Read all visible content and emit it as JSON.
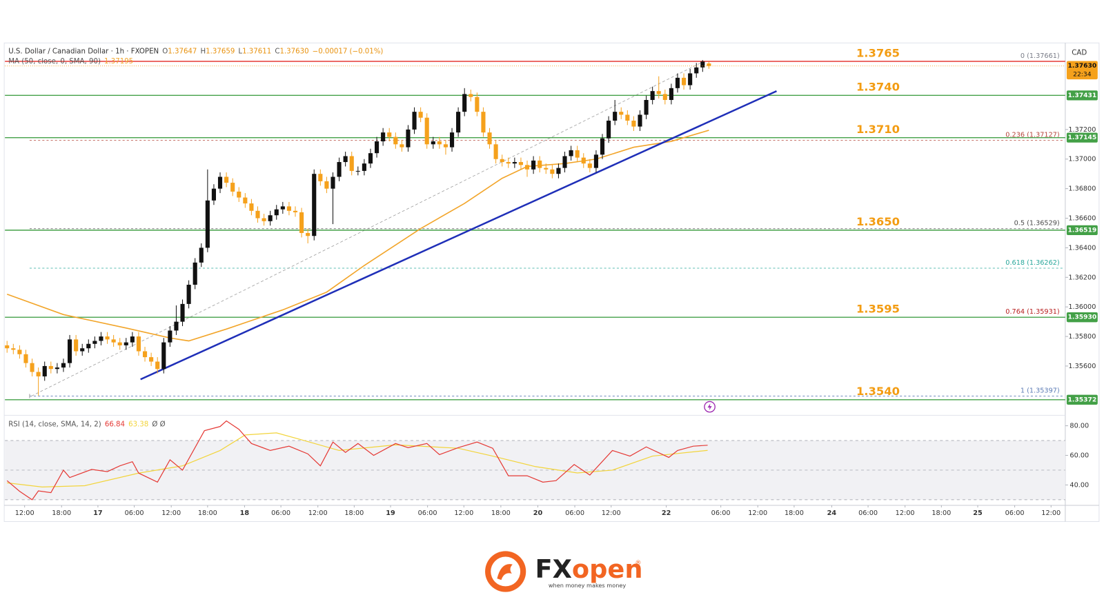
{
  "chart_data": {
    "type": "candlestick",
    "title": "U.S. Dollar / Canadian Dollar · 1h · FXOPEN",
    "ohlc_legend": [
      {
        "key": "O",
        "text": "1.37647"
      },
      {
        "key": "H",
        "text": "1.37659"
      },
      {
        "key": "L",
        "text": "1.37611"
      },
      {
        "key": "C",
        "text": "1.37630"
      }
    ],
    "change": "−0.00017 (−0.01%)",
    "currency": "CAD",
    "up_color": "#111111",
    "down_color": "#f5a11c",
    "xlim": [
      -0.34,
      168.87
    ],
    "xticks": [
      {
        "value": 2.8,
        "label": "12:00"
      },
      {
        "value": 8.7,
        "label": "18:00"
      },
      {
        "value": 14.5,
        "label": "17"
      },
      {
        "value": 20.3,
        "label": "06:00"
      },
      {
        "value": 26.2,
        "label": "12:00"
      },
      {
        "value": 32.0,
        "label": "18:00"
      },
      {
        "value": 37.9,
        "label": "18"
      },
      {
        "value": 43.7,
        "label": "06:00"
      },
      {
        "value": 49.6,
        "label": "12:00"
      },
      {
        "value": 55.4,
        "label": "18:00"
      },
      {
        "value": 61.2,
        "label": "19"
      },
      {
        "value": 67.1,
        "label": "06:00"
      },
      {
        "value": 72.9,
        "label": "12:00"
      },
      {
        "value": 78.8,
        "label": "18:00"
      },
      {
        "value": 84.7,
        "label": "20"
      },
      {
        "value": 90.6,
        "label": "06:00"
      },
      {
        "value": 96.4,
        "label": "12:00"
      },
      {
        "value": 105.2,
        "label": "22"
      },
      {
        "value": 113.9,
        "label": "06:00"
      },
      {
        "value": 119.8,
        "label": "12:00"
      },
      {
        "value": 125.6,
        "label": "18:00"
      },
      {
        "value": 131.6,
        "label": "24"
      },
      {
        "value": 137.4,
        "label": "06:00"
      },
      {
        "value": 143.3,
        "label": "12:00"
      },
      {
        "value": 149.1,
        "label": "18:00"
      },
      {
        "value": 154.9,
        "label": "25"
      },
      {
        "value": 160.8,
        "label": "06:00"
      },
      {
        "value": 166.6,
        "label": "12:00"
      }
    ],
    "ylim": [
      1.35267,
      1.37781
    ],
    "yticks": [
      {
        "value": 1.372,
        "label": "1.37200"
      },
      {
        "value": 1.37,
        "label": "1.37000"
      },
      {
        "value": 1.368,
        "label": "1.36800"
      },
      {
        "value": 1.366,
        "label": "1.36600"
      },
      {
        "value": 1.364,
        "label": "1.36400"
      },
      {
        "value": 1.362,
        "label": "1.36200"
      },
      {
        "value": 1.36,
        "label": "1.36000"
      },
      {
        "value": 1.358,
        "label": "1.35800"
      },
      {
        "value": 1.356,
        "label": "1.35600"
      }
    ],
    "open": [
      1.3574,
      1.3572,
      1.3571,
      1.3568,
      1.3562,
      1.3556,
      1.3553,
      1.356,
      1.3558,
      1.3559,
      1.3562,
      1.3578,
      1.357,
      1.3572,
      1.3575,
      1.3577,
      1.358,
      1.3578,
      1.3576,
      1.3574,
      1.3576,
      1.358,
      1.357,
      1.3566,
      1.3563,
      1.3558,
      1.3576,
      1.3584,
      1.359,
      1.3602,
      1.3615,
      1.363,
      1.364,
      1.3672,
      1.368,
      1.3688,
      1.3684,
      1.3678,
      1.3674,
      1.367,
      1.3665,
      1.366,
      1.3658,
      1.3662,
      1.3666,
      1.3668,
      1.3665,
      1.3664,
      1.365,
      1.3648,
      1.369,
      1.3685,
      1.368,
      1.3688,
      1.3698,
      1.3702,
      1.3692,
      1.3692,
      1.3697,
      1.3704,
      1.3712,
      1.3718,
      1.3715,
      1.371,
      1.3708,
      1.372,
      1.3732,
      1.3728,
      1.371,
      1.3712,
      1.371,
      1.3708,
      1.3718,
      1.3732,
      1.3744,
      1.3742,
      1.3732,
      1.3718,
      1.371,
      1.37,
      1.3698,
      1.3697,
      1.3698,
      1.3696,
      1.3693,
      1.3699,
      1.3694,
      1.3693,
      1.369,
      1.3694,
      1.3702,
      1.3706,
      1.3701,
      1.3697,
      1.3694,
      1.3703,
      1.3714,
      1.3726,
      1.3732,
      1.373,
      1.3726,
      1.3722,
      1.373,
      1.374,
      1.3746,
      1.3744,
      1.374,
      1.3748,
      1.3755,
      1.375,
      1.3758,
      1.3762,
      1.37647
    ],
    "high": [
      1.3577,
      1.3575,
      1.3574,
      1.3571,
      1.3565,
      1.3559,
      1.3563,
      1.3563,
      1.3562,
      1.3565,
      1.3581,
      1.3581,
      1.3575,
      1.3578,
      1.358,
      1.3583,
      1.3583,
      1.3581,
      1.3579,
      1.3579,
      1.3583,
      1.3583,
      1.3573,
      1.3569,
      1.3566,
      1.3579,
      1.3587,
      1.3601,
      1.3605,
      1.3618,
      1.3633,
      1.3643,
      1.3693,
      1.3683,
      1.3691,
      1.3691,
      1.3687,
      1.3681,
      1.3677,
      1.3673,
      1.3668,
      1.3663,
      1.3665,
      1.3669,
      1.3671,
      1.3671,
      1.3668,
      1.3667,
      1.3653,
      1.3693,
      1.3693,
      1.3688,
      1.3691,
      1.3701,
      1.3705,
      1.3705,
      1.3695,
      1.37,
      1.3707,
      1.3715,
      1.3721,
      1.3721,
      1.3718,
      1.3713,
      1.3723,
      1.3735,
      1.3735,
      1.3731,
      1.3715,
      1.3715,
      1.3713,
      1.3721,
      1.3735,
      1.3748,
      1.3747,
      1.3745,
      1.3735,
      1.3721,
      1.3713,
      1.3703,
      1.3701,
      1.3701,
      1.3701,
      1.3699,
      1.3702,
      1.3702,
      1.3697,
      1.3696,
      1.3697,
      1.3705,
      1.3709,
      1.3709,
      1.3704,
      1.37,
      1.3706,
      1.3717,
      1.3729,
      1.374,
      1.3735,
      1.3733,
      1.3729,
      1.3733,
      1.3743,
      1.3749,
      1.3756,
      1.3747,
      1.3751,
      1.3758,
      1.3758,
      1.3761,
      1.3765,
      1.3767,
      1.37659
    ],
    "low": [
      1.3569,
      1.3568,
      1.3565,
      1.3559,
      1.3553,
      1.354,
      1.355,
      1.3555,
      1.3555,
      1.3556,
      1.3559,
      1.3567,
      1.3567,
      1.3569,
      1.3572,
      1.3574,
      1.3575,
      1.3573,
      1.3571,
      1.3571,
      1.3573,
      1.3567,
      1.3563,
      1.356,
      1.3555,
      1.3555,
      1.3573,
      1.3581,
      1.3587,
      1.3599,
      1.3612,
      1.3627,
      1.3637,
      1.3669,
      1.3677,
      1.3681,
      1.3675,
      1.3671,
      1.3667,
      1.3662,
      1.3657,
      1.3655,
      1.3655,
      1.3659,
      1.3663,
      1.3662,
      1.3661,
      1.3647,
      1.3643,
      1.3645,
      1.3682,
      1.3677,
      1.3656,
      1.3685,
      1.3695,
      1.3689,
      1.3689,
      1.3689,
      1.3694,
      1.3701,
      1.3709,
      1.3712,
      1.3707,
      1.3705,
      1.3705,
      1.3717,
      1.3725,
      1.3707,
      1.3707,
      1.3707,
      1.3703,
      1.3705,
      1.3715,
      1.3729,
      1.3739,
      1.3729,
      1.3715,
      1.3707,
      1.3697,
      1.3695,
      1.3694,
      1.3694,
      1.3693,
      1.3688,
      1.369,
      1.3691,
      1.369,
      1.3687,
      1.3687,
      1.3691,
      1.3699,
      1.3698,
      1.3694,
      1.3691,
      1.3691,
      1.37,
      1.3711,
      1.3723,
      1.3727,
      1.3723,
      1.3719,
      1.3719,
      1.3727,
      1.3737,
      1.3741,
      1.3737,
      1.3737,
      1.3745,
      1.3747,
      1.3747,
      1.3755,
      1.3759,
      1.37611
    ],
    "close": [
      1.3572,
      1.3571,
      1.3568,
      1.3562,
      1.3556,
      1.3553,
      1.356,
      1.3558,
      1.3559,
      1.3562,
      1.3578,
      1.357,
      1.3572,
      1.3575,
      1.3577,
      1.358,
      1.3578,
      1.3576,
      1.3574,
      1.3576,
      1.358,
      1.357,
      1.3566,
      1.3563,
      1.3558,
      1.3576,
      1.3584,
      1.359,
      1.3602,
      1.3615,
      1.363,
      1.364,
      1.3672,
      1.368,
      1.3688,
      1.3684,
      1.3678,
      1.3674,
      1.367,
      1.3665,
      1.366,
      1.3658,
      1.3662,
      1.3666,
      1.3668,
      1.3665,
      1.3664,
      1.365,
      1.3648,
      1.369,
      1.3685,
      1.368,
      1.3688,
      1.3698,
      1.3702,
      1.3692,
      1.3692,
      1.3697,
      1.3704,
      1.3712,
      1.3718,
      1.3715,
      1.371,
      1.3708,
      1.372,
      1.3732,
      1.3728,
      1.371,
      1.3712,
      1.371,
      1.3708,
      1.3718,
      1.3732,
      1.3744,
      1.3742,
      1.3732,
      1.3718,
      1.371,
      1.37,
      1.3698,
      1.3697,
      1.3698,
      1.3696,
      1.3693,
      1.3699,
      1.3694,
      1.3693,
      1.369,
      1.3694,
      1.3702,
      1.3706,
      1.3701,
      1.3697,
      1.3694,
      1.3703,
      1.3714,
      1.3726,
      1.3732,
      1.373,
      1.3726,
      1.3722,
      1.373,
      1.374,
      1.3746,
      1.3744,
      1.374,
      1.3748,
      1.3755,
      1.375,
      1.3758,
      1.3762,
      1.3766,
      1.3763
    ],
    "ma": {
      "label": "MA (50, close, 0, SMA, 90)",
      "value_label": "1.37195",
      "color": "#f2a52a",
      "x": [
        0,
        9,
        19,
        26,
        29,
        35,
        44,
        51,
        57,
        66,
        73,
        79,
        83,
        89,
        94,
        100,
        106,
        112
      ],
      "values": [
        1.36086,
        1.35948,
        1.35857,
        1.3579,
        1.3577,
        1.3585,
        1.3598,
        1.361,
        1.3628,
        1.3653,
        1.367,
        1.3687,
        1.3695,
        1.3697,
        1.37,
        1.3708,
        1.3712,
        1.37195
      ]
    },
    "trendline": {
      "color": "#1f2fb8",
      "x": [
        21.3,
        122.8
      ],
      "values": [
        1.3551,
        1.3746
      ]
    },
    "fib_trend": {
      "color": "#9e9e9e",
      "x": [
        3.9,
        111.2
      ],
      "values": [
        1.35397,
        1.37661
      ]
    },
    "levels": [
      {
        "label": "1.3765",
        "value": 1.3765,
        "line": 1.37661,
        "color": "#e53935"
      },
      {
        "label": "1.3740",
        "value": 1.374,
        "line": 1.37431,
        "line_label": "1.37431",
        "color": "#43a047"
      },
      {
        "label": "1.3710",
        "value": 1.371,
        "line": 1.37145,
        "line_label": "1.37145",
        "color": "#43a047"
      },
      {
        "label": "1.3650",
        "value": 1.365,
        "line": 1.36519,
        "line_label": "1.36519",
        "color": "#43a047"
      },
      {
        "label": "1.3595",
        "value": 1.3595,
        "line": 1.3593,
        "line_label": "1.35930",
        "color": "#43a047"
      },
      {
        "label": "1.3540",
        "value": 1.354,
        "line": 1.35372,
        "line_label": "1.35372",
        "color": "#43a047"
      }
    ],
    "level_label_color": "#f39c12",
    "fib_start": 3.6,
    "fib": [
      {
        "label": "0 (1.37661)",
        "value": 1.37661,
        "color": "#787b86"
      },
      {
        "label": "0.236 (1.37127)",
        "value": 1.37127,
        "color": "#b5453a"
      },
      {
        "label": "0.5 (1.36529)",
        "value": 1.36529,
        "color": "#4a4a4a"
      },
      {
        "label": "0.618 (1.36262)",
        "value": 1.36262,
        "color": "#26a69a"
      },
      {
        "label": "0.764 (1.35931)",
        "value": 1.35931,
        "color": "#b71c1c"
      },
      {
        "label": "1 (1.35397)",
        "value": 1.35397,
        "color": "#5b7bb5"
      }
    ],
    "current_price": {
      "value": 1.3763,
      "label": "1.37630",
      "countdown": "22:34",
      "color": "#f5a11c"
    },
    "rsi": {
      "title": "RSI (14, close, SMA, 14, 2)",
      "value_labels": [
        "66.84",
        "63.38"
      ],
      "flags": "Ø Ø",
      "ylim": [
        26.2,
        87.1
      ],
      "yticks": [
        {
          "value": 80,
          "label": "80.00"
        },
        {
          "value": 60,
          "label": "60.00"
        },
        {
          "value": 40,
          "label": "40.00"
        }
      ],
      "band": [
        30,
        70
      ],
      "mid": 50,
      "series": [
        {
          "name": "RSI",
          "color": "#e53935",
          "x": [
            0,
            2,
            4,
            5,
            7,
            9,
            10,
            13.5,
            16,
            18,
            20,
            21,
            24,
            26,
            28,
            31.5,
            34,
            35,
            37,
            39,
            42,
            45,
            48,
            50,
            52,
            54,
            56,
            58.5,
            62,
            64,
            67,
            69,
            72,
            75,
            77.5,
            80,
            83,
            85.5,
            87.6,
            90.5,
            93,
            96.6,
            99.4,
            102,
            105.6,
            107,
            109.5,
            111.8
          ],
          "values": [
            42.9,
            35.7,
            30,
            36,
            34.8,
            50,
            45,
            50.5,
            49,
            52.9,
            55.7,
            48,
            41.9,
            57,
            50,
            76.7,
            79.5,
            83.3,
            77.6,
            68,
            63.3,
            66.2,
            61,
            52.9,
            69,
            62,
            68,
            60,
            68,
            65.2,
            68,
            60.5,
            65.2,
            69,
            64.8,
            46.2,
            46.2,
            41.9,
            42.9,
            53.8,
            46.7,
            63.3,
            59.5,
            65.7,
            58.6,
            63.3,
            66.2,
            66.84
          ]
        },
        {
          "name": "RSI SMA",
          "color": "#f2d43a",
          "x": [
            0,
            5.6,
            12.4,
            21,
            28,
            34,
            38,
            43,
            47,
            53,
            62,
            72,
            77.5,
            84.3,
            91,
            96.6,
            103,
            111.8
          ],
          "values": [
            41.4,
            38.6,
            39.5,
            48,
            52.9,
            63.3,
            73.8,
            75.2,
            70.5,
            63.3,
            67.1,
            64.8,
            59.5,
            52.4,
            48.1,
            50,
            59.5,
            63.38
          ]
        }
      ]
    },
    "footer": {
      "brand_fx": "FX",
      "brand_open": "open",
      "registered": "®",
      "tagline": "when money makes money"
    }
  }
}
